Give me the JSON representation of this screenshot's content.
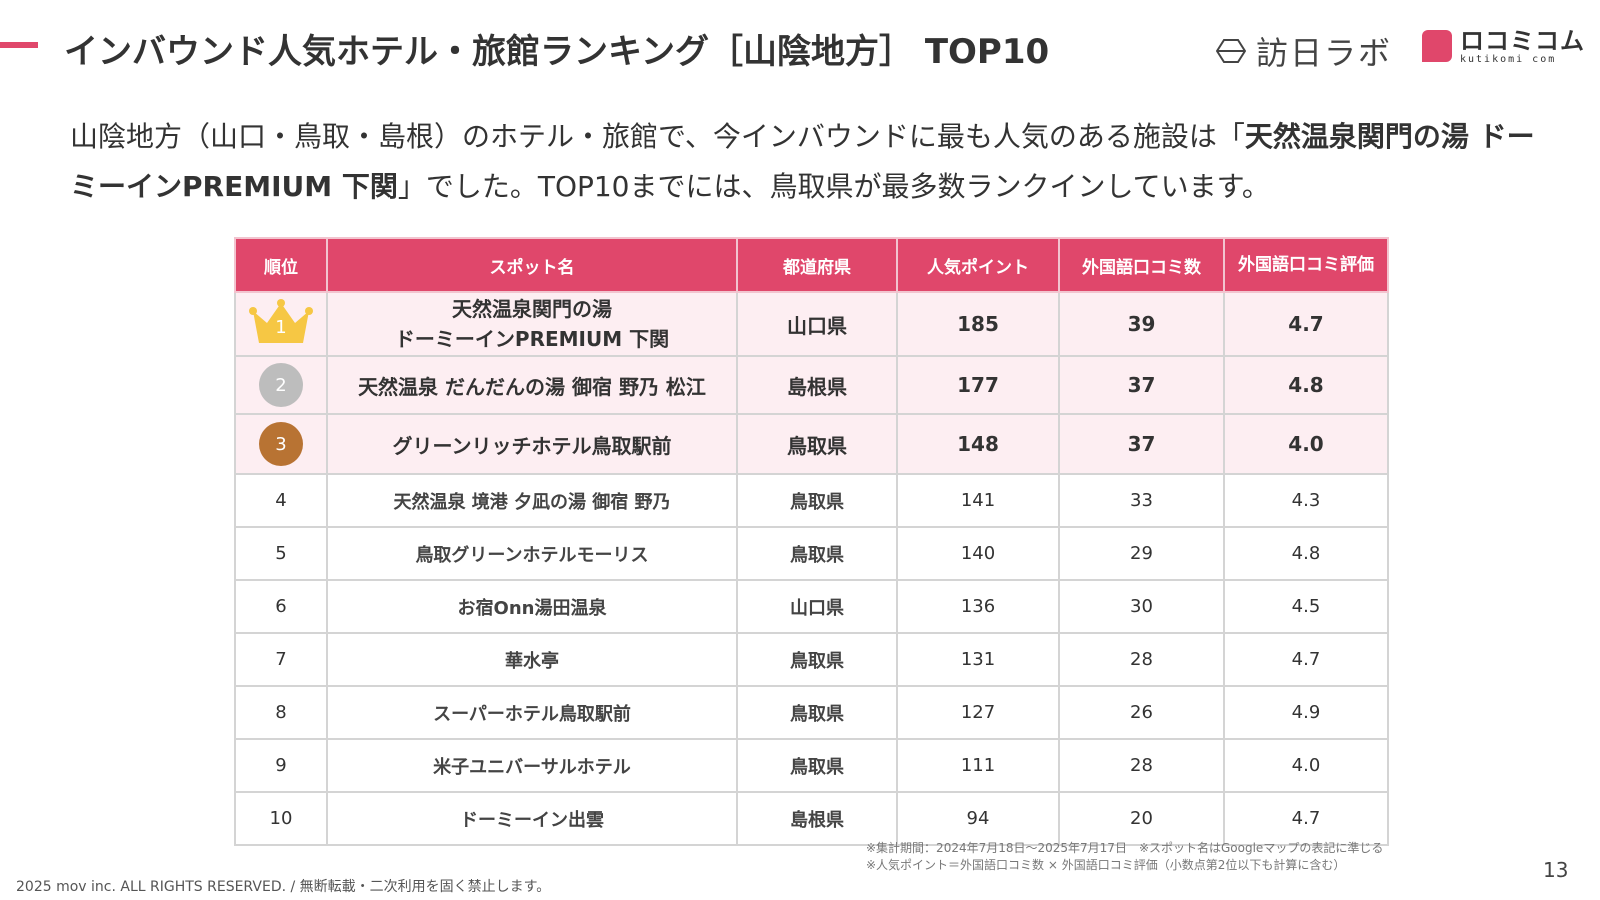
{
  "header": {
    "title": "インバウンド人気ホテル・旅館ランキング［山陰地方］ TOP10",
    "logo_houtika": "訪日ラボ",
    "logo_kutikomi": "ロコミコム",
    "logo_kutikomi_sub": "kutikomi com"
  },
  "lead": {
    "part1": "山陰地方（山口・鳥取・島根）のホテル・旅館で、今インバウンドに最も人気のある施設は「",
    "highlight": "天然温泉関門の湯 ドーミーインPREMIUM 下関",
    "part2": "」でした。TOP10までには、鳥取県が最多数ランクインしています。"
  },
  "table": {
    "headers": {
      "rank": "順位",
      "name": "スポット名",
      "prefecture": "都道府県",
      "points": "人気ポイント",
      "reviews": "外国語口コミ数",
      "rating": "外国語口コミ評価"
    },
    "rows": [
      {
        "rank": "1",
        "name": "天然温泉関門の湯\nドーミーインPREMIUM 下関",
        "prefecture": "山口県",
        "points": "185",
        "reviews": "39",
        "rating": "4.7"
      },
      {
        "rank": "2",
        "name": "天然温泉 だんだんの湯 御宿 野乃 松江",
        "prefecture": "島根県",
        "points": "177",
        "reviews": "37",
        "rating": "4.8"
      },
      {
        "rank": "3",
        "name": "グリーンリッチホテル鳥取駅前",
        "prefecture": "鳥取県",
        "points": "148",
        "reviews": "37",
        "rating": "4.0"
      },
      {
        "rank": "4",
        "name": "天然温泉 境港 夕凪の湯 御宿 野乃",
        "prefecture": "鳥取県",
        "points": "141",
        "reviews": "33",
        "rating": "4.3"
      },
      {
        "rank": "5",
        "name": "鳥取グリーンホテルモーリス",
        "prefecture": "鳥取県",
        "points": "140",
        "reviews": "29",
        "rating": "4.8"
      },
      {
        "rank": "6",
        "name": "お宿Onn湯田温泉",
        "prefecture": "山口県",
        "points": "136",
        "reviews": "30",
        "rating": "4.5"
      },
      {
        "rank": "7",
        "name": "華水亭",
        "prefecture": "鳥取県",
        "points": "131",
        "reviews": "28",
        "rating": "4.7"
      },
      {
        "rank": "8",
        "name": "スーパーホテル鳥取駅前",
        "prefecture": "鳥取県",
        "points": "127",
        "reviews": "26",
        "rating": "4.9"
      },
      {
        "rank": "9",
        "name": "米子ユニバーサルホテル",
        "prefecture": "鳥取県",
        "points": "111",
        "reviews": "28",
        "rating": "4.0"
      },
      {
        "rank": "10",
        "name": "ドーミーイン出雲",
        "prefecture": "島根県",
        "points": "94",
        "reviews": "20",
        "rating": "4.7"
      }
    ]
  },
  "notes": {
    "line1": "※集計期間：2024年7月18日〜2025年7月17日　※スポット名はGoogleマップの表記に準じる",
    "line2": "※人気ポイント＝外国語口コミ数 × 外国語口コミ評価（小数点第2位以下も計算に含む）"
  },
  "footer": "2025 mov inc. ALL RIGHTS RESERVED. / 無断転載・二次利用を固く禁止します。",
  "page_number": "13",
  "colors": {
    "accent": "#e0476b",
    "top_row_bg": "#fdeef2",
    "gold": "#f6c744",
    "silver": "#bdbdbd",
    "bronze": "#b87333"
  },
  "icons": {
    "rank1": "crown-icon",
    "rank2": "silver-medal-icon",
    "rank3": "bronze-medal-icon"
  }
}
